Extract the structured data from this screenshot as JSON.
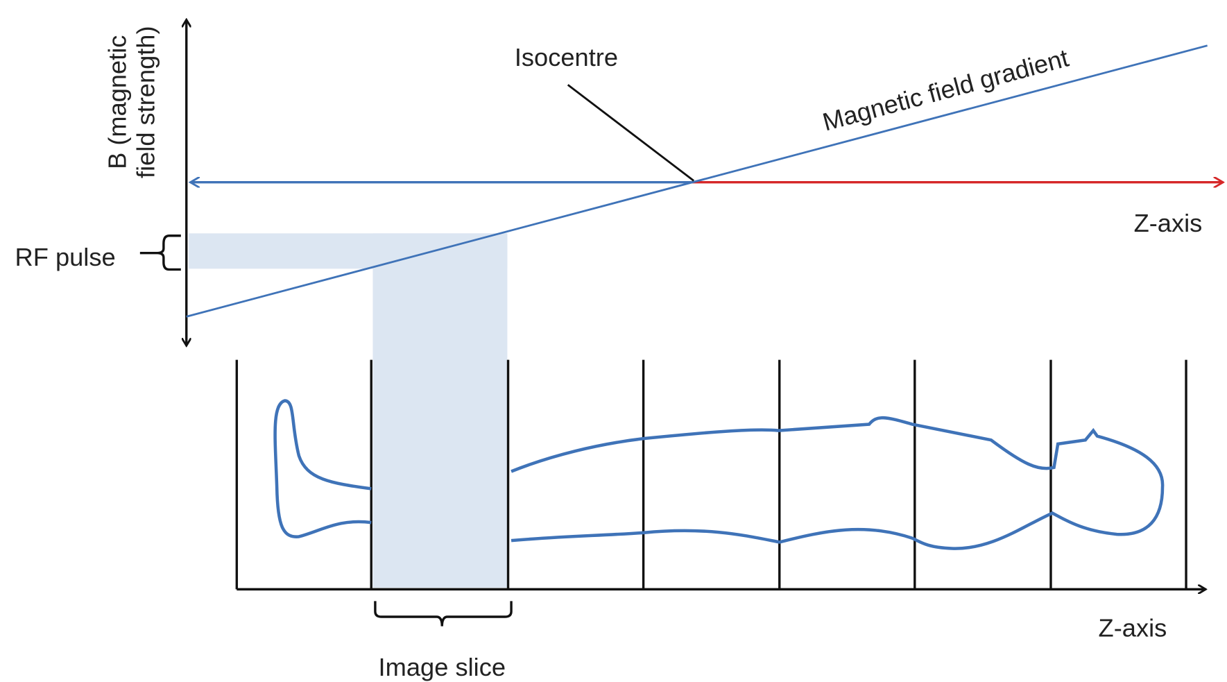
{
  "y_axis_label": {
    "line1": "B (magnetic",
    "line2": "field strength)"
  },
  "isocentre_label": "Isocentre",
  "gradient_label": "Magnetic field gradient",
  "top_axis_label": "Z-axis",
  "rf_pulse_label": "RF pulse",
  "bottom_axis_label": "Z-axis",
  "image_slice_label": "Image slice"
}
